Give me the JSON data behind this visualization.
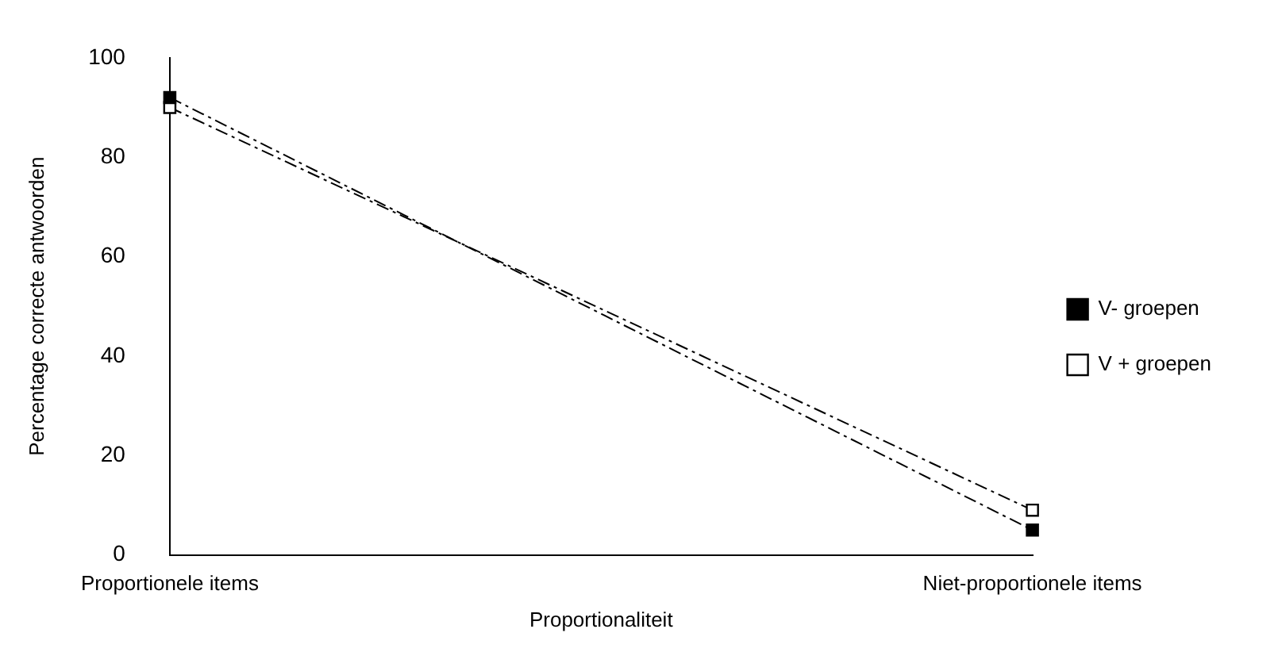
{
  "chart_data": {
    "type": "line",
    "xlabel": "Proportionaliteit",
    "ylabel": "Percentage correcte antwoorden",
    "categories": [
      "Proportionele items",
      "Niet-proportionele items"
    ],
    "series": [
      {
        "name": "V- groepen",
        "color": "#000000",
        "values": [
          92,
          5
        ]
      },
      {
        "name": "V + groepen",
        "color": "#000000",
        "values": [
          90,
          9
        ]
      }
    ],
    "marker": "square",
    "ylim": [
      0,
      100
    ],
    "yticks": [
      0,
      20,
      40,
      60,
      80,
      100
    ],
    "grid": false,
    "legend": "right",
    "line_style": "dashed"
  }
}
